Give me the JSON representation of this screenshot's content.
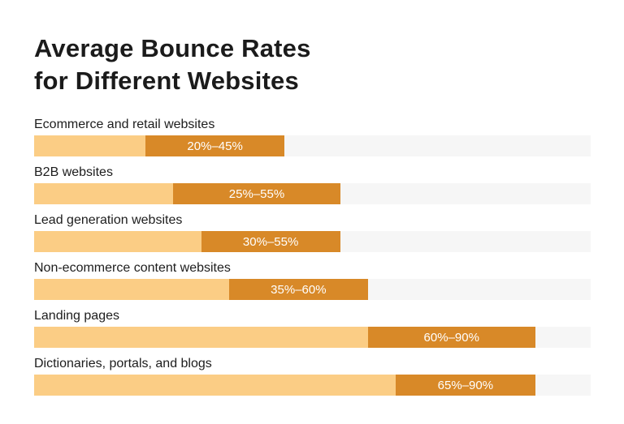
{
  "title": {
    "line1": "Average Bounce Rates",
    "line2": "for Different Websites"
  },
  "chart_data": {
    "type": "bar",
    "orientation": "horizontal",
    "title": "Average Bounce Rates for Different Websites",
    "categories": [
      "Ecommerce and retail websites",
      "B2B websites",
      "Lead generation websites",
      "Non-ecommerce content websites",
      "Landing pages",
      "Dictionaries, portals, and blogs"
    ],
    "series": [
      {
        "name": "low",
        "values": [
          20,
          25,
          30,
          35,
          60,
          65
        ]
      },
      {
        "name": "high",
        "values": [
          45,
          55,
          55,
          60,
          90,
          90
        ]
      }
    ],
    "bar_labels": [
      "20%–45%",
      "25%–55%",
      "30%–55%",
      "35%–60%",
      "60%–90%",
      "65%–90%"
    ],
    "xlabel": "",
    "ylabel": "",
    "xlim": [
      0,
      100
    ],
    "grid": false,
    "legend": false,
    "colors": {
      "track": "#f6f6f6",
      "below_range_fill": "#fbcd85",
      "range_fill": "#d88928",
      "range_label_text": "#ffffff",
      "title_text": "#1b1b1b",
      "category_text": "#1d1d1d",
      "background": "#ffffff"
    }
  }
}
